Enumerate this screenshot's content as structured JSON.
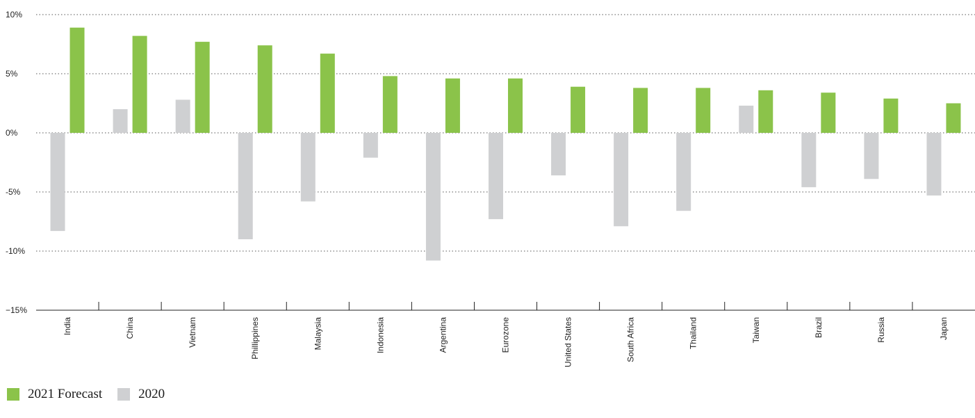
{
  "chart_data": {
    "type": "bar",
    "categories": [
      "India",
      "China",
      "Vietnam",
      "Phillippines",
      "Malaysia",
      "Indonesia",
      "Argentina",
      "Eurozone",
      "United States",
      "South Africa",
      "Thailand",
      "Taiwan",
      "Brazil",
      "Russia",
      "Japan"
    ],
    "series": [
      {
        "name": "2020",
        "color": "#cfd0d2",
        "values": [
          -8.3,
          2.0,
          2.8,
          -9.0,
          -5.8,
          -2.1,
          -10.8,
          -7.3,
          -3.6,
          -7.9,
          -6.6,
          2.3,
          -4.6,
          -3.9,
          -5.3
        ]
      },
      {
        "name": "2021 Forecast",
        "color": "#8bc34a",
        "values": [
          8.9,
          8.2,
          7.7,
          7.4,
          6.7,
          4.8,
          4.6,
          4.6,
          3.9,
          3.8,
          3.8,
          3.6,
          3.4,
          2.9,
          2.5
        ]
      }
    ],
    "yticks": [
      10,
      5,
      0,
      -5,
      -10,
      -15
    ],
    "ytick_labels": [
      "10%",
      "5%",
      "0%",
      "-5%",
      "-10%",
      "−15%"
    ],
    "ylim": [
      -15,
      10
    ],
    "grid": true,
    "legend_placement": "bottom-left",
    "legend": [
      {
        "label": "2021 Forecast",
        "color": "#8bc34a"
      },
      {
        "label": "2020",
        "color": "#cfd0d2"
      }
    ]
  }
}
